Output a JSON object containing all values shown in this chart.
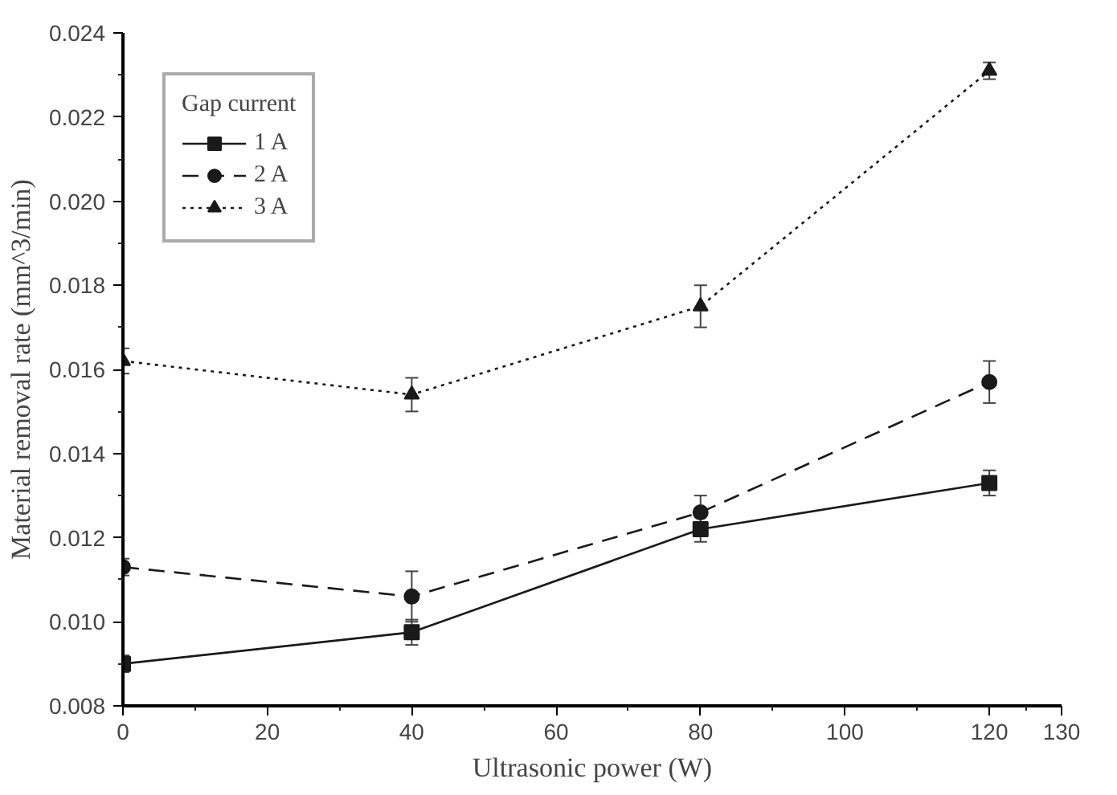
{
  "chart_data": {
    "type": "line",
    "xlabel": "Ultrasonic power (W)",
    "ylabel": "Material removal rate (mm^3/min)",
    "legend_title": "Gap current",
    "x": [
      0,
      40,
      80,
      120
    ],
    "series": [
      {
        "name": "1 A",
        "color": "#1a1a1a",
        "marker": "square",
        "line_style": "solid",
        "values": [
          0.009,
          0.00975,
          0.0122,
          0.0133
        ],
        "errors": [
          0.0002,
          0.0003,
          0.0003,
          0.0003
        ]
      },
      {
        "name": "2 A",
        "color": "#1a1a1a",
        "marker": "circle",
        "line_style": "dashed",
        "values": [
          0.0113,
          0.0106,
          0.0126,
          0.0157
        ],
        "errors": [
          0.0002,
          0.0006,
          0.0004,
          0.0005
        ]
      },
      {
        "name": "3 A",
        "color": "#1a1a1a",
        "marker": "triangle",
        "line_style": "dotted",
        "values": [
          0.0162,
          0.0154,
          0.0175,
          0.0231
        ],
        "errors": [
          0.0003,
          0.0004,
          0.0005,
          0.0002
        ]
      }
    ],
    "xlim": [
      0,
      130
    ],
    "xticks": [
      0,
      20,
      40,
      60,
      80,
      100,
      120,
      130
    ],
    "ylim": [
      0.008,
      0.024
    ],
    "yticks": [
      {
        "value": 0.008,
        "label": "0.008"
      },
      {
        "value": 0.01,
        "label": "0.010"
      },
      {
        "value": 0.012,
        "label": "0.012"
      },
      {
        "value": 0.014,
        "label": "0.014"
      },
      {
        "value": 0.016,
        "label": "0.016"
      },
      {
        "value": 0.018,
        "label": "0.018"
      },
      {
        "value": 0.02,
        "label": "0.020"
      },
      {
        "value": 0.022,
        "label": "0.022"
      },
      {
        "value": 0.024,
        "label": "0.024"
      }
    ],
    "grid": false,
    "legend": "top left"
  }
}
